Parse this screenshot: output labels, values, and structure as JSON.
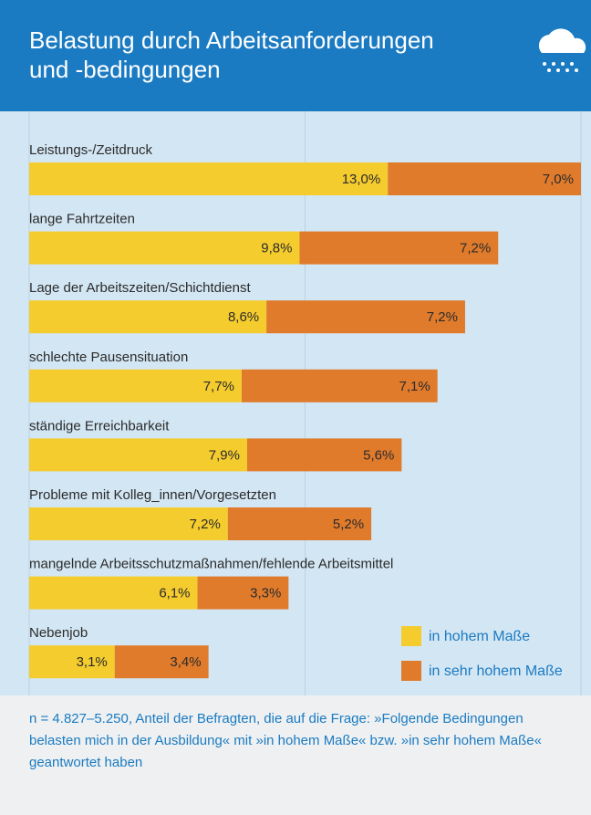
{
  "chart_data": {
    "type": "stacked_barh",
    "title": "Belastung durch Arbeitsanforderungen und -bedingungen",
    "categories": [
      "Leistungs-/Zeitdruck",
      "lange Fahrtzeiten",
      "Lage der Arbeitszeiten/Schichtdienst",
      "schlechte Pausensituation",
      "ständige Erreichbarkeit",
      "Probleme mit Kolleg_innen/Vorgesetzten",
      "mangelnde Arbeitsschutzmaßnahmen/fehlende Arbeitsmittel",
      "Nebenjob"
    ],
    "series": [
      {
        "name": "in hohem Maße",
        "color": "#f5cc2e",
        "values": [
          13.0,
          9.8,
          8.6,
          7.7,
          7.9,
          7.2,
          6.1,
          3.1
        ],
        "value_labels": [
          "13,0%",
          "9,8%",
          "8,6%",
          "7,7%",
          "7,9%",
          "7,2%",
          "6,1%",
          "3,1%"
        ]
      },
      {
        "name": "in sehr hohem Maße",
        "color": "#e07b2c",
        "values": [
          7.0,
          7.2,
          7.2,
          7.1,
          5.6,
          5.2,
          3.3,
          3.4
        ],
        "value_labels": [
          "7,0%",
          "7,2%",
          "7,2%",
          "7,1%",
          "5,6%",
          "5,2%",
          "3,3%",
          "3,4%"
        ]
      }
    ],
    "xlim": [
      0,
      20
    ],
    "xticks": [
      0,
      10,
      20
    ],
    "grid": true,
    "legend": "lower right",
    "note": "n = 4.827–5.250, Anteil der Befragten, die auf die Frage: »Folgende Bedingungen belasten mich in der Ausbildung« mit »in hohem Maße« bzw. »in sehr hohem Maße« geantwortet haben"
  }
}
